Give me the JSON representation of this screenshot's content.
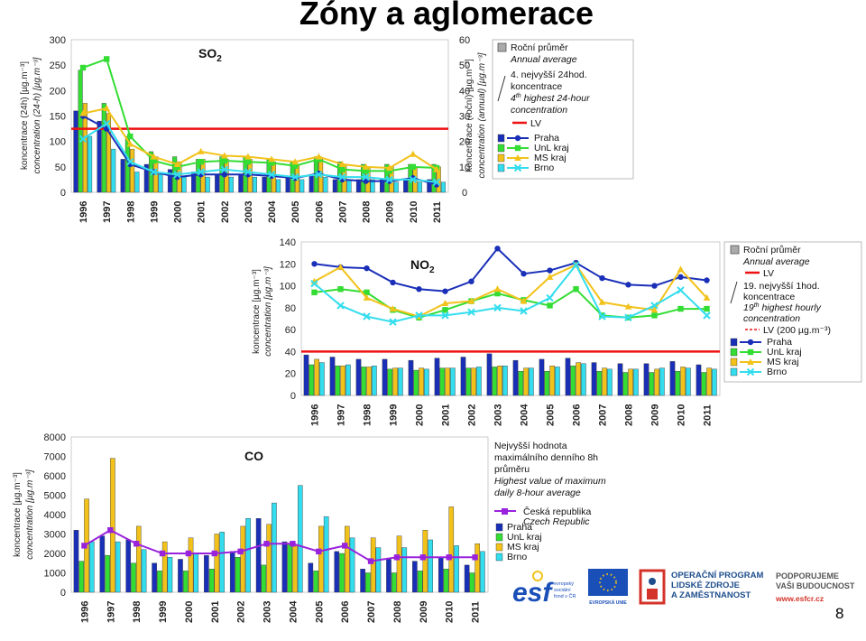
{
  "slide": {
    "title": "Zóny a aglomerace",
    "page_number": "8"
  },
  "colors": {
    "praha": "#1a2fb8",
    "unl": "#33dd33",
    "ms": "#f2c21a",
    "brno": "#33ddee",
    "lv": "#ee1111",
    "cr": "#9922dd"
  },
  "chart_data": [
    {
      "id": "so2",
      "type": "bar+line",
      "title_main": "SO",
      "title_sub": "2",
      "categories": [
        "1996",
        "1997",
        "1998",
        "1999",
        "2000",
        "2001",
        "2002",
        "2003",
        "2004",
        "2005",
        "2006",
        "2007",
        "2008",
        "2009",
        "2010",
        "2011"
      ],
      "y_left": {
        "label1": "koncentrace (24h) [µg.m⁻³]",
        "label2": "concentration (24-h) [µg.m⁻³]",
        "min": 0,
        "max": 300,
        "ticks": [
          0,
          50,
          100,
          150,
          200,
          250,
          300
        ]
      },
      "y_right": {
        "label1": "koncentrace (roční) [µg.m⁻³]",
        "label2": "concentration (annual) [µg.m⁻³]",
        "min": 0,
        "max": 60,
        "ticks": [
          0,
          10,
          20,
          30,
          40,
          50,
          60
        ]
      },
      "bars_annual": [
        {
          "name": "Praha",
          "values": [
            32,
            28,
            13,
            11,
            9,
            8,
            7,
            7,
            6,
            6,
            7,
            5,
            5,
            5,
            5,
            5
          ]
        },
        {
          "name": "UnL kraj",
          "values": [
            48,
            35,
            22,
            16,
            14,
            13,
            14,
            14,
            13,
            12,
            14,
            12,
            11,
            11,
            11,
            11
          ]
        },
        {
          "name": "MS kraj",
          "values": [
            35,
            31,
            17,
            14,
            12,
            13,
            13,
            13,
            12,
            11,
            13,
            11,
            10,
            10,
            10,
            10
          ]
        },
        {
          "name": "Brno",
          "values": [
            22,
            17,
            8,
            7,
            6,
            6,
            6,
            6,
            5,
            5,
            6,
            5,
            5,
            4,
            4,
            4
          ]
        }
      ],
      "lines_24h": [
        {
          "name": "Praha",
          "values": [
            150,
            125,
            55,
            40,
            30,
            35,
            35,
            35,
            32,
            28,
            37,
            25,
            22,
            22,
            28,
            15
          ]
        },
        {
          "name": "UnL kraj",
          "values": [
            245,
            262,
            110,
            62,
            50,
            60,
            62,
            60,
            58,
            52,
            65,
            45,
            42,
            42,
            50,
            48
          ]
        },
        {
          "name": "MS kraj",
          "values": [
            155,
            165,
            95,
            70,
            55,
            80,
            72,
            70,
            65,
            60,
            70,
            55,
            50,
            48,
            75,
            45
          ]
        },
        {
          "name": "Brno",
          "values": [
            105,
            135,
            60,
            40,
            35,
            40,
            45,
            40,
            35,
            30,
            35,
            30,
            30,
            25,
            25,
            20
          ]
        }
      ],
      "lv": 125,
      "legend": {
        "annual_cs": "Roční průměr",
        "annual_en": "Annual average",
        "h24_cs_1": "4. nejvyšší 24hod.",
        "h24_cs_2": "koncentrace",
        "h24_en_1": "4",
        "h24_en_sup": "th",
        "h24_en_2": " highest 24-hour",
        "h24_en_3": "concentration",
        "lv": "LV",
        "series": [
          "Praha",
          "UnL kraj",
          "MS kraj",
          "Brno"
        ]
      }
    },
    {
      "id": "no2",
      "type": "bar+line",
      "title_main": "NO",
      "title_sub": "2",
      "categories": [
        "1996",
        "1997",
        "1998",
        "1999",
        "2000",
        "2001",
        "2002",
        "2003",
        "2004",
        "2005",
        "2006",
        "2007",
        "2008",
        "2009",
        "2010",
        "2011"
      ],
      "y_left": {
        "label1": "koncentrace [µg.m⁻³]",
        "label2": "concentration [µg.m⁻³]",
        "min": 0,
        "max": 140,
        "ticks": [
          0,
          20,
          40,
          60,
          80,
          100,
          120,
          140
        ]
      },
      "bars_annual": [
        {
          "name": "Praha",
          "values": [
            37,
            35,
            33,
            33,
            32,
            34,
            35,
            38,
            32,
            33,
            34,
            30,
            29,
            29,
            31,
            28
          ]
        },
        {
          "name": "UnL kraj",
          "values": [
            28,
            27,
            26,
            24,
            23,
            25,
            25,
            26,
            22,
            22,
            27,
            22,
            21,
            21,
            22,
            21
          ]
        },
        {
          "name": "MS kraj",
          "values": [
            33,
            27,
            26,
            25,
            25,
            25,
            25,
            27,
            25,
            27,
            30,
            25,
            24,
            24,
            26,
            25
          ]
        },
        {
          "name": "Brno",
          "values": [
            30,
            28,
            27,
            25,
            24,
            25,
            26,
            27,
            25,
            26,
            29,
            24,
            24,
            25,
            25,
            24
          ]
        }
      ],
      "lines_1h": [
        {
          "name": "Praha",
          "values": [
            120,
            117,
            116,
            103,
            97,
            95,
            104,
            134,
            111,
            114,
            121,
            107,
            101,
            100,
            108,
            105
          ]
        },
        {
          "name": "UnL kraj",
          "values": [
            94,
            97,
            94,
            78,
            71,
            78,
            86,
            93,
            87,
            82,
            97,
            73,
            71,
            73,
            79,
            79
          ]
        },
        {
          "name": "MS kraj",
          "values": [
            104,
            117,
            89,
            79,
            72,
            84,
            86,
            97,
            86,
            108,
            119,
            85,
            81,
            78,
            115,
            89
          ]
        },
        {
          "name": "Brno",
          "values": [
            102,
            82,
            72,
            67,
            73,
            73,
            76,
            80,
            77,
            89,
            119,
            72,
            71,
            82,
            96,
            73
          ]
        }
      ],
      "lv": 40,
      "lv_hourly": 200,
      "legend": {
        "annual_cs": "Roční průměr",
        "annual_en": "Annual average",
        "lv": "LV",
        "h1_cs_1": "19. nejvyšší 1hod.",
        "h1_cs_2": "koncentrace",
        "h1_en_1": "19",
        "h1_en_sup": "th",
        "h1_en_2": " highest hourly",
        "h1_en_3": "concentration",
        "lv_h": "LV (200 µg.m⁻³)",
        "series": [
          "Praha",
          "UnL kraj",
          "MS kraj",
          "Brno"
        ]
      }
    },
    {
      "id": "co",
      "type": "bar+line",
      "title_main": "CO",
      "categories": [
        "1996",
        "1997",
        "1998",
        "1999",
        "2000",
        "2001",
        "2002",
        "2003",
        "2004",
        "2005",
        "2006",
        "2007",
        "2008",
        "2009",
        "2010",
        "2011"
      ],
      "y_left": {
        "label1": "koncentrace [µg.m⁻³]",
        "label2": "concentration [µg.m⁻³]",
        "min": 0,
        "max": 8000,
        "ticks": [
          0,
          1000,
          2000,
          3000,
          4000,
          5000,
          6000,
          7000,
          8000
        ]
      },
      "bars": [
        {
          "name": "Praha",
          "values": [
            3200,
            2900,
            2700,
            1500,
            1700,
            1900,
            2100,
            3800,
            2600,
            1500,
            2100,
            1200,
            1700,
            1600,
            1800,
            1400
          ]
        },
        {
          "name": "UnL kraj",
          "values": [
            1600,
            1900,
            1500,
            1100,
            1100,
            1200,
            1800,
            1400,
            2500,
            1100,
            2000,
            1000,
            1000,
            1100,
            1200,
            1000
          ]
        },
        {
          "name": "MS kraj",
          "values": [
            4800,
            6900,
            3400,
            2600,
            2800,
            3000,
            3400,
            3500,
            2400,
            3400,
            3400,
            2800,
            2900,
            3200,
            4400,
            2500
          ]
        },
        {
          "name": "Brno",
          "values": [
            2600,
            2600,
            2200,
            1800,
            2000,
            3100,
            3800,
            4600,
            5500,
            3900,
            2800,
            2300,
            2300,
            2700,
            2400,
            2100
          ]
        }
      ],
      "line_cr": {
        "name": "Česká republika",
        "values": [
          2400,
          3200,
          2500,
          2000,
          2000,
          2000,
          2100,
          2500,
          2500,
          2100,
          2400,
          1600,
          1800,
          1800,
          1800,
          1800
        ]
      },
      "legend": {
        "cs_1": "Nejvyšší hodnota",
        "cs_2": "maximálního denního 8h",
        "cs_3": "průměru",
        "en_1": "Highest value of maximum",
        "en_2": "daily 8-hour average",
        "cr_cs": "Česká republika",
        "cr_en": "Czech Republic",
        "series": [
          "Praha",
          "UnL kraj",
          "MS kraj",
          "Brno"
        ]
      }
    }
  ],
  "footer": {
    "esf_letters": "esf",
    "esf_small1": "evropský",
    "esf_small2": "sociální",
    "esf_small3": "fond v ČR",
    "eu_label": "EVROPSKÁ UNIE",
    "op_line1": "OPERAČNÍ PROGRAM",
    "op_line2": "LIDSKÉ ZDROJE",
    "op_line3": "A ZAMĚSTNANOST",
    "sup_line1": "PODPORUJEME",
    "sup_line2": "VAŠI BUDOUCNOST",
    "url": "www.esfcr.cz"
  }
}
